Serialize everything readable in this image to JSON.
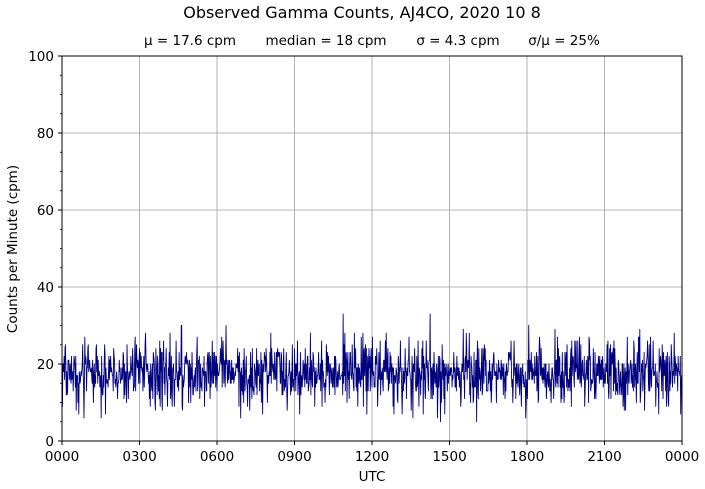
{
  "chart_data": {
    "type": "line",
    "title": "Observed Gamma Counts, AJ4CO, 2020 10 8",
    "subtitle": {
      "mean": "μ = 17.6 cpm",
      "median": "median = 18 cpm",
      "sigma": "σ = 4.3 cpm",
      "cv": "σ/μ = 25%"
    },
    "xlabel": "UTC",
    "ylabel": "Counts per Minute (cpm)",
    "x_ticks": [
      "0000",
      "0300",
      "0600",
      "0900",
      "1200",
      "1500",
      "1800",
      "2100",
      "0000"
    ],
    "y_ticks": [
      0,
      20,
      40,
      60,
      80,
      100
    ],
    "xlim_minutes": [
      0,
      1440
    ],
    "ylim": [
      0,
      100
    ],
    "grid": true,
    "series": [
      {
        "color": "#00007f",
        "sampling": "1 value per minute",
        "mean": 17.6,
        "median": 18,
        "sigma": 4.3,
        "approx_min": 5,
        "approx_max": 33
      }
    ]
  }
}
